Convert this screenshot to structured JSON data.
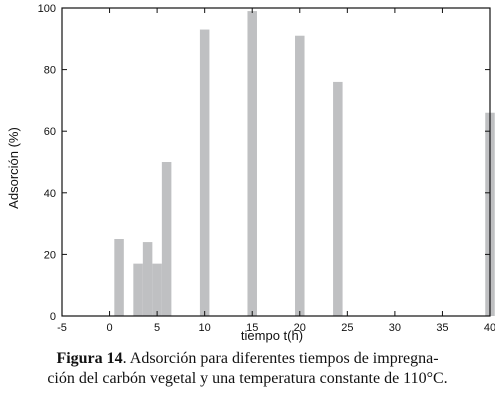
{
  "chart_data": {
    "type": "bar",
    "xlabel": "tiempo t(h)",
    "ylabel": "Adsorción (%)",
    "xlim": [
      -5,
      40
    ],
    "ylim": [
      0,
      100
    ],
    "xticks": [
      -5,
      0,
      5,
      10,
      15,
      20,
      25,
      30,
      35,
      40
    ],
    "yticks": [
      0,
      20,
      40,
      60,
      80,
      100
    ],
    "bar_color": "#bfc0c2",
    "grid": false,
    "x": [
      1,
      3,
      4,
      5,
      6,
      10,
      15,
      20,
      24,
      40
    ],
    "values": [
      25,
      17,
      24,
      17,
      50,
      93,
      99,
      91,
      76,
      66
    ]
  },
  "caption": {
    "label": "Figura 14",
    "line1": ". Adsorción para diferentes tiempos de impregna-",
    "line2": "ción del carbón vegetal y una temperatura constante de 110°C."
  }
}
